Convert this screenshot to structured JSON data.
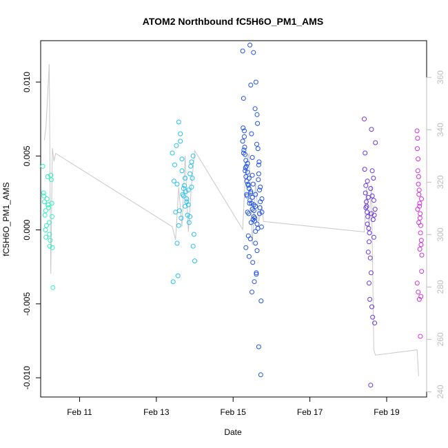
{
  "chart_data": {
    "type": "scatter",
    "title": "ATOM2 Northbound fC5H6O_PM1_AMS",
    "xlabel": "Date",
    "ylabel": "fC5H6O_PM1_AMS",
    "x_ticks": [
      "Feb 11",
      "Feb 13",
      "Feb 15",
      "Feb 17",
      "Feb 19"
    ],
    "xlim": [
      "Feb 9 23:40",
      "Feb 20 01:00"
    ],
    "ylim": [
      -0.0113,
      0.0128
    ],
    "y_ticks": [
      -0.01,
      -0.005,
      0.0,
      0.005,
      0.01
    ],
    "y_tick_labels": [
      "-0.010",
      "-0.005",
      "0.000",
      "0.005",
      "0.010"
    ],
    "y2lim": [
      238,
      374
    ],
    "y2_ticks": [
      240,
      260,
      280,
      300,
      320,
      340,
      360
    ],
    "y2_color": "#bdbdbd",
    "line_color": "#c8c8c8",
    "grid": false,
    "legend": "none",
    "line_series": {
      "axis": "right",
      "x": [
        "Feb 10 02:00",
        "Feb 10 03:00",
        "Feb 10 04:00",
        "Feb 10 05:00",
        "Feb 10 06:00",
        "Feb 10 07:00",
        "Feb 10 08:00",
        "Feb 10 09:00",
        "Feb 13 10:00",
        "Feb 13 12:00",
        "Feb 13 14:00",
        "Feb 13 16:00",
        "Feb 13 18:00",
        "Feb 13 20:00",
        "Feb 13 22:00",
        "Feb 14 00:00",
        "Feb 15 06:00",
        "Feb 15 08:00",
        "Feb 15 10:00",
        "Feb 15 12:00",
        "Feb 15 14:00",
        "Feb 15 16:00",
        "Feb 15 18:00",
        "Feb 15 19:00",
        "Feb 18 10:00",
        "Feb 18 11:30",
        "Feb 18 13:00",
        "Feb 18 14:30",
        "Feb 18 16:00",
        "Feb 18 17:00",
        "Feb 19 19:00",
        "Feb 19 20:00"
      ],
      "values": [
        336,
        341,
        353,
        365,
        285,
        333,
        328,
        331,
        303,
        298,
        318,
        303,
        330,
        301,
        319,
        332,
        302,
        327,
        331,
        296,
        320,
        305,
        311,
        305,
        301,
        318,
        303,
        319,
        256,
        254,
        256,
        246
      ]
    },
    "series": [
      {
        "color": "#2ef0c0",
        "x": [
          "Feb 10 01:00",
          "Feb 10 01:30",
          "Feb 10 02:00",
          "Feb 10 02:20",
          "Feb 10 02:40",
          "Feb 10 03:00",
          "Feb 10 03:20",
          "Feb 10 03:40",
          "Feb 10 04:00",
          "Feb 10 04:20",
          "Feb 10 04:40",
          "Feb 10 05:00",
          "Feb 10 05:20",
          "Feb 10 05:40",
          "Feb 10 06:00",
          "Feb 10 06:20",
          "Feb 10 06:40",
          "Feb 10 07:00",
          "Feb 10 07:20",
          "Feb 10 01:40",
          "Feb 10 02:50",
          "Feb 10 05:10",
          "Feb 10 06:50",
          "Feb 10 04:30"
        ],
        "y": [
          0.0043,
          0.0025,
          0.0019,
          0.001,
          0.0,
          -0.0005,
          0.0003,
          0.0021,
          0.0036,
          0.0017,
          0.0015,
          0.0005,
          -0.0011,
          -0.0007,
          0.0037,
          0.0034,
          0.0018,
          -0.0012,
          -0.0039,
          0.0023,
          0.0013,
          -0.0003,
          0.0009,
          0.0017
        ]
      },
      {
        "color": "#22c2f2",
        "x": [
          "Feb 13 10:00",
          "Feb 13 11:00",
          "Feb 13 12:00",
          "Feb 13 13:00",
          "Feb 13 14:00",
          "Feb 13 15:00",
          "Feb 13 16:00",
          "Feb 13 17:00",
          "Feb 13 18:00",
          "Feb 13 19:00",
          "Feb 13 20:00",
          "Feb 13 21:00",
          "Feb 13 22:00",
          "Feb 13 23:00",
          "Feb 14 00:00",
          "Feb 13 10:30",
          "Feb 13 12:30",
          "Feb 13 14:30",
          "Feb 13 16:30",
          "Feb 13 18:30",
          "Feb 13 20:30",
          "Feb 13 22:30",
          "Feb 13 11:30",
          "Feb 13 13:30",
          "Feb 13 15:30",
          "Feb 13 17:30",
          "Feb 13 19:30",
          "Feb 13 21:30",
          "Feb 13 23:30",
          "Feb 13 13:00",
          "Feb 13 15:00",
          "Feb 13 17:00",
          "Feb 13 19:00",
          "Feb 13 21:00",
          "Feb 13 23:00",
          "Feb 13 14:00",
          "Feb 13 16:00",
          "Feb 13 18:00",
          "Feb 13 20:00",
          "Feb 13 22:00"
        ],
        "y": [
          0.0052,
          0.0033,
          0.0012,
          -0.0009,
          0.0073,
          0.0065,
          0.004,
          0.0028,
          0.0035,
          0.0021,
          0.0017,
          0.0009,
          0.0046,
          0.005,
          -0.0021,
          -0.0035,
          0.0057,
          0.0013,
          0.0024,
          0.0026,
          0.0005,
          0.0035,
          0.0044,
          -0.0031,
          0.0008,
          0.003,
          0.001,
          0.0043,
          -0.0003,
          0.0031,
          0.006,
          0.0023,
          0.0019,
          0.0038,
          -0.0011,
          0.0003,
          0.0048,
          0.0016,
          0.0027,
          0.0029
        ]
      },
      {
        "color": "#1f52e8",
        "x": [
          "Feb 15 06:00",
          "Feb 15 06:30",
          "Feb 15 07:00",
          "Feb 15 07:30",
          "Feb 15 08:00",
          "Feb 15 08:30",
          "Feb 15 09:00",
          "Feb 15 09:30",
          "Feb 15 10:00",
          "Feb 15 10:30",
          "Feb 15 11:00",
          "Feb 15 11:30",
          "Feb 15 12:00",
          "Feb 15 12:30",
          "Feb 15 13:00",
          "Feb 15 13:30",
          "Feb 15 14:00",
          "Feb 15 14:30",
          "Feb 15 15:00",
          "Feb 15 15:30",
          "Feb 15 16:00",
          "Feb 15 16:30",
          "Feb 15 17:00",
          "Feb 15 17:30",
          "Feb 15 18:00",
          "Feb 15 06:15",
          "Feb 15 07:15",
          "Feb 15 08:15",
          "Feb 15 09:15",
          "Feb 15 10:15",
          "Feb 15 11:15",
          "Feb 15 12:15",
          "Feb 15 13:15",
          "Feb 15 14:15",
          "Feb 15 15:15",
          "Feb 15 16:15",
          "Feb 15 17:15",
          "Feb 15 06:45",
          "Feb 15 07:45",
          "Feb 15 08:45",
          "Feb 15 09:45",
          "Feb 15 10:45",
          "Feb 15 11:45",
          "Feb 15 12:45",
          "Feb 15 13:45",
          "Feb 15 14:45",
          "Feb 15 15:45",
          "Feb 15 16:45",
          "Feb 15 17:45",
          "Feb 15 06:00",
          "Feb 15 08:00",
          "Feb 15 10:00",
          "Feb 15 12:00",
          "Feb 15 14:00",
          "Feb 15 16:00",
          "Feb 15 18:00",
          "Feb 15 07:00",
          "Feb 15 09:00",
          "Feb 15 11:00",
          "Feb 15 13:00",
          "Feb 15 15:00",
          "Feb 15 17:00",
          "Feb 15 06:30",
          "Feb 15 08:30",
          "Feb 15 10:30",
          "Feb 15 12:30",
          "Feb 15 14:30",
          "Feb 15 16:30",
          "Feb 15 09:00",
          "Feb 15 11:00",
          "Feb 15 13:00",
          "Feb 15 15:00",
          "Feb 15 07:30",
          "Feb 15 10:00",
          "Feb 15 12:00",
          "Feb 15 14:00",
          "Feb 15 16:00",
          "Feb 15 09:30",
          "Feb 15 11:30",
          "Feb 15 13:30",
          "Feb 15 15:30",
          "Feb 15 08:00",
          "Feb 15 12:00",
          "Feb 15 14:00"
        ],
        "y": [
          0.0121,
          0.0089,
          0.0067,
          0.0051,
          0.0036,
          0.0024,
          0.0012,
          -0.0004,
          -0.0018,
          0.0125,
          0.0098,
          0.0065,
          0.0049,
          0.0031,
          0.0017,
          0.0006,
          -0.0009,
          -0.0029,
          0.0078,
          0.0055,
          0.0038,
          0.0027,
          0.0019,
          -0.0048,
          0.0012,
          0.0069,
          0.0056,
          0.0043,
          0.0031,
          0.0018,
          0.0005,
          -0.0022,
          -0.0035,
          0.01,
          0.0072,
          0.0046,
          -0.0098,
          0.0054,
          0.0042,
          0.0023,
          0.0011,
          -0.0006,
          -0.0042,
          0.012,
          0.0082,
          0.0058,
          0.0034,
          0.0015,
          0.0002,
          0.006,
          0.0047,
          0.0028,
          0.0014,
          -0.0001,
          -0.0079,
          0.0021,
          0.0063,
          0.0039,
          0.0025,
          0.0009,
          -0.0014,
          0.0029,
          0.0052,
          0.0033,
          0.002,
          0.0007,
          -0.003,
          0.0011,
          0.0045,
          0.0026,
          0.0013,
          0.0004,
          0.004,
          0.0035,
          0.0022,
          0.0016,
          0.0044,
          0.003,
          0.0018,
          0.0008,
          0.0001,
          -0.0012,
          0.0037,
          0.0024
        ]
      },
      {
        "color": "#6a32de",
        "x": [
          "Feb 18 10:00",
          "Feb 18 10:30",
          "Feb 18 11:00",
          "Feb 18 11:30",
          "Feb 18 12:00",
          "Feb 18 12:30",
          "Feb 18 13:00",
          "Feb 18 13:30",
          "Feb 18 14:00",
          "Feb 18 14:30",
          "Feb 18 15:00",
          "Feb 18 15:30",
          "Feb 18 16:00",
          "Feb 18 16:30",
          "Feb 18 17:00",
          "Feb 18 10:15",
          "Feb 18 11:15",
          "Feb 18 12:15",
          "Feb 18 13:15",
          "Feb 18 14:15",
          "Feb 18 15:15",
          "Feb 18 16:15",
          "Feb 18 10:45",
          "Feb 18 11:45",
          "Feb 18 12:45",
          "Feb 18 13:45",
          "Feb 18 14:45",
          "Feb 18 15:45",
          "Feb 18 16:45",
          "Feb 18 12:00",
          "Feb 18 14:00",
          "Feb 18 16:00",
          "Feb 18 11:00",
          "Feb 18 13:00",
          "Feb 18 15:00",
          "Feb 18 12:30",
          "Feb 18 14:30"
        ],
        "y": [
          0.0075,
          0.0052,
          0.003,
          0.0016,
          0.0004,
          -0.0015,
          -0.0036,
          -0.0047,
          -0.0105,
          0.0068,
          0.0023,
          0.0007,
          -0.0005,
          -0.0063,
          0.0059,
          0.0041,
          0.0019,
          0.0009,
          -0.0002,
          -0.0029,
          -0.0059,
          0.001,
          0.0025,
          0.0012,
          0.0001,
          -0.0019,
          -0.0052,
          0.0035,
          0.0014,
          0.0033,
          0.0028,
          0.002,
          0.0015,
          -0.0008,
          0.004,
          0.0022,
          0.0011
        ]
      },
      {
        "color": "#d22ee0",
        "x": [
          "Feb 19 19:00",
          "Feb 19 19:20",
          "Feb 19 19:40",
          "Feb 19 20:00",
          "Feb 19 20:20",
          "Feb 19 20:40",
          "Feb 19 21:00",
          "Feb 19 21:20",
          "Feb 19 21:40",
          "Feb 19 22:00",
          "Feb 19 19:10",
          "Feb 19 19:30",
          "Feb 19 19:50",
          "Feb 19 20:10",
          "Feb 19 20:30",
          "Feb 19 20:50",
          "Feb 19 21:10",
          "Feb 19 21:30",
          "Feb 19 21:50",
          "Feb 19 19:05",
          "Feb 19 19:45",
          "Feb 19 20:25",
          "Feb 19 21:05",
          "Feb 19 21:45",
          "Feb 19 19:25",
          "Feb 19 20:05",
          "Feb 19 20:45",
          "Feb 19 21:25"
        ],
        "y": [
          0.0067,
          0.0062,
          0.0048,
          0.0036,
          0.0027,
          0.0018,
          0.0011,
          0.0003,
          -0.0007,
          -0.0017,
          0.0055,
          0.004,
          0.0031,
          0.0024,
          0.0016,
          0.0008,
          -0.0002,
          -0.001,
          -0.0028,
          -0.0036,
          -0.0042,
          -0.0047,
          -0.0072,
          0.0021,
          0.0014,
          0.0005,
          -0.0013,
          -0.0045
        ]
      }
    ]
  }
}
